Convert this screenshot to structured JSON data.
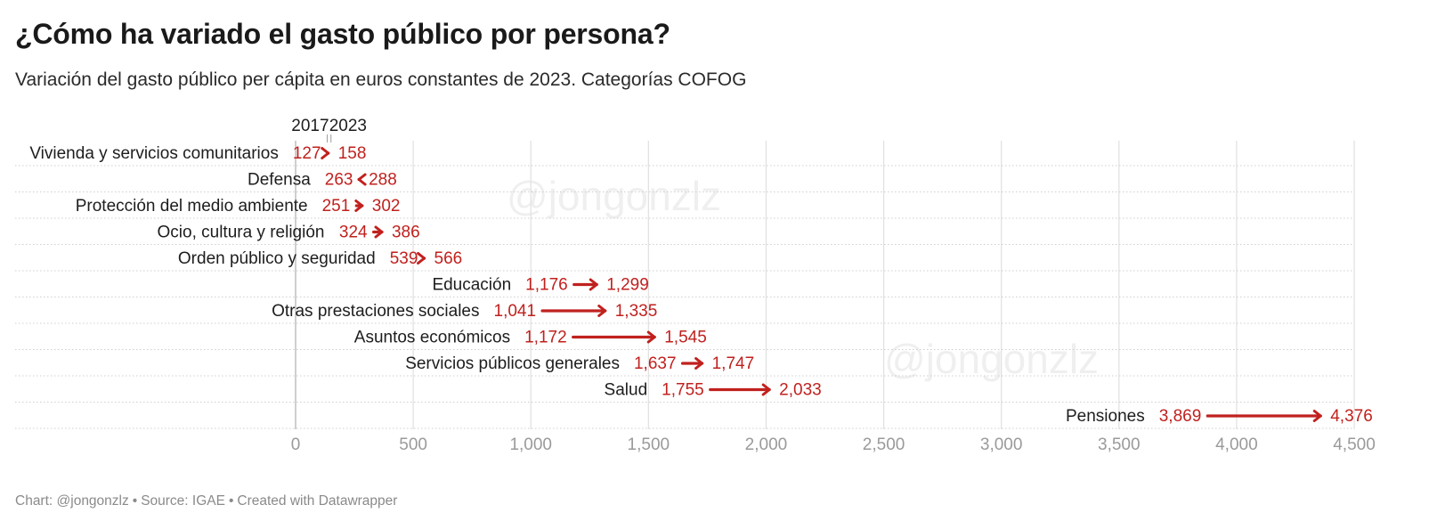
{
  "title": "¿Cómo ha variado el gasto público por persona?",
  "subtitle": "Variación del gasto público per cápita en euros constantes de 2023. Categorías COFOG",
  "footer": {
    "chart_credit": "Chart: @jongonzlz",
    "source": "Source: IGAE",
    "tool": "Created with Datawrapper",
    "separator": "•"
  },
  "watermark": "@jongonzlz",
  "colors": {
    "arrow": "#c0211e",
    "value_text": "#c0211e",
    "grid": "#e2e2e2",
    "row_line": "#cfcfcf",
    "tick_text": "#9a9a9a",
    "label_text": "#1d1d1d"
  },
  "chart_data": {
    "type": "arrow-range",
    "start_label": "2017",
    "end_label": "2023",
    "categories": [
      "Vivienda y servicios comunitarios",
      "Defensa",
      "Protección del medio ambiente",
      "Ocio, cultura y religión",
      "Orden público y seguridad",
      "Educación",
      "Otras prestaciones sociales",
      "Asuntos económicos",
      "Servicios públicos generales",
      "Salud",
      "Pensiones"
    ],
    "series": [
      {
        "name": "2017",
        "values": [
          127,
          263,
          251,
          324,
          539,
          1176,
          1041,
          1172,
          1637,
          1755,
          3869
        ]
      },
      {
        "name": "2023",
        "values": [
          158,
          288,
          302,
          386,
          566,
          1299,
          1335,
          1545,
          1747,
          2033,
          4376
        ]
      }
    ],
    "value_labels_start": [
      "127",
      "263",
      "251",
      "324",
      "539",
      "1,176",
      "1,041",
      "1,172",
      "1,637",
      "1,755",
      "3,869"
    ],
    "value_labels_end": [
      "158",
      "288",
      "302",
      "386",
      "566",
      "1,299",
      "1,335",
      "1,545",
      "1,747",
      "2,033",
      "4,376"
    ],
    "xlim": [
      0,
      4500
    ],
    "xticks": [
      0,
      500,
      1000,
      1500,
      2000,
      2500,
      3000,
      3500,
      4000,
      4500
    ],
    "xtick_labels": [
      "0",
      "500",
      "1,000",
      "1,500",
      "2,000",
      "2,500",
      "3,000",
      "3,500",
      "4,000",
      "4,500"
    ],
    "grid": true,
    "legend": "top-left"
  }
}
